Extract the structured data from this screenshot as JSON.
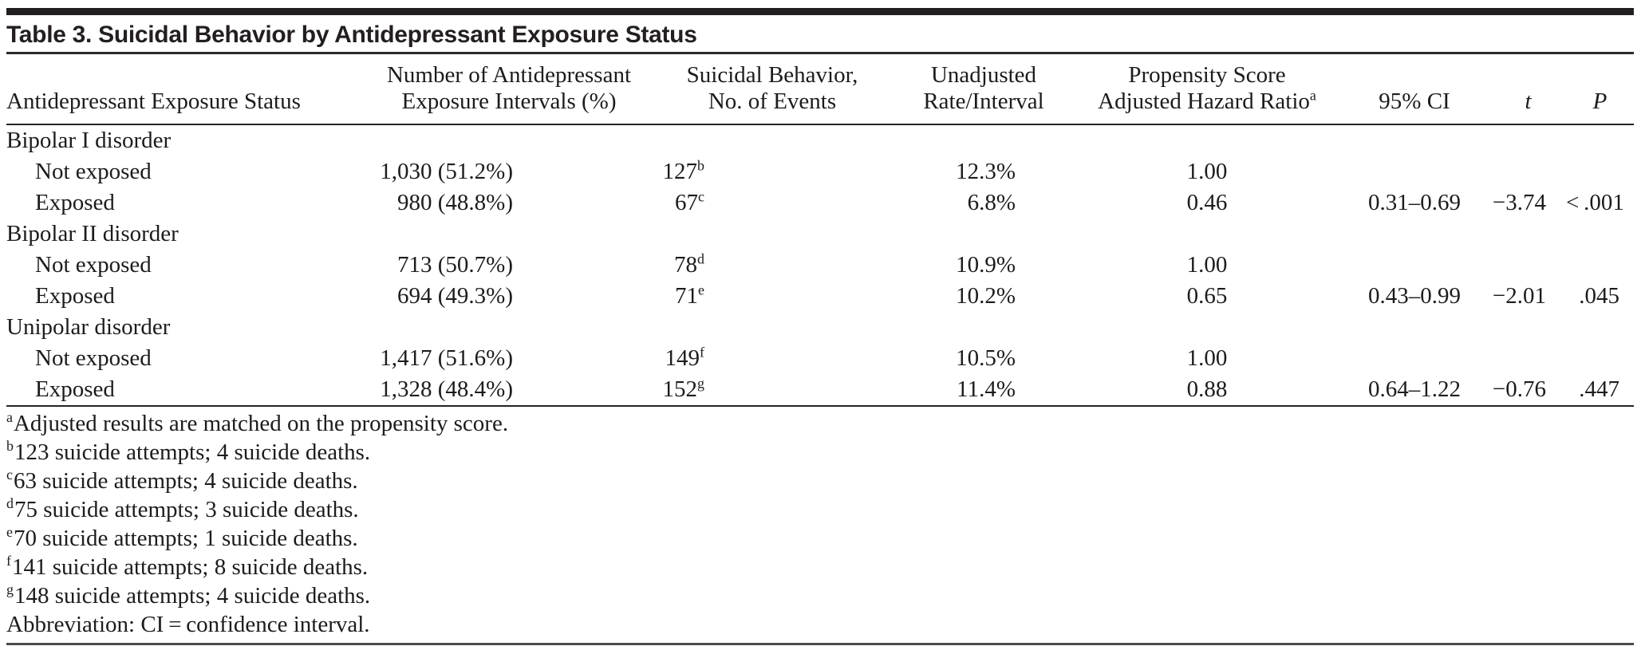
{
  "table": {
    "title": "Table 3. Suicidal Behavior by Antidepressant Exposure Status",
    "columns": [
      {
        "id": "status",
        "line1": "",
        "line2": "Antidepressant Exposure Status"
      },
      {
        "id": "intervals",
        "line1": "Number of Antidepressant",
        "line2": "Exposure Intervals (%)"
      },
      {
        "id": "events",
        "line1": "Suicidal Behavior,",
        "line2": "No. of Events"
      },
      {
        "id": "rate",
        "line1": "Unadjusted",
        "line2": "Rate/Interval"
      },
      {
        "id": "hr",
        "line1": "Propensity Score",
        "line2": "Adjusted Hazard Ratio",
        "line2_sup": "a"
      },
      {
        "id": "ci",
        "line1": "",
        "line2": "95% CI"
      },
      {
        "id": "t",
        "line1": "",
        "line2": "t",
        "italic": true
      },
      {
        "id": "p",
        "line1": "",
        "line2": "P",
        "italic": true
      }
    ],
    "rows": [
      {
        "type": "group",
        "label": "Bipolar I disorder"
      },
      {
        "type": "data",
        "label": "Not exposed",
        "intervals": "1,030 (51.2%)",
        "events": "127",
        "events_sup": "b",
        "rate": "12.3%",
        "hr": "1.00",
        "ci": "",
        "t": "",
        "p": ""
      },
      {
        "type": "data",
        "label": "Exposed",
        "intervals": "980 (48.8%)",
        "events": "67",
        "events_sup": "c",
        "rate": "6.8%",
        "hr": "0.46",
        "ci": "0.31–0.69",
        "t": "−3.74",
        "p": "< .001"
      },
      {
        "type": "group",
        "label": "Bipolar II disorder"
      },
      {
        "type": "data",
        "label": "Not exposed",
        "intervals": "713 (50.7%)",
        "events": "78",
        "events_sup": "d",
        "rate": "10.9%",
        "hr": "1.00",
        "ci": "",
        "t": "",
        "p": ""
      },
      {
        "type": "data",
        "label": "Exposed",
        "intervals": "694 (49.3%)",
        "events": "71",
        "events_sup": "e",
        "rate": "10.2%",
        "hr": "0.65",
        "ci": "0.43–0.99",
        "t": "−2.01",
        "p": ".045"
      },
      {
        "type": "group",
        "label": "Unipolar disorder"
      },
      {
        "type": "data",
        "label": "Not exposed",
        "intervals": "1,417 (51.6%)",
        "events": "149",
        "events_sup": "f",
        "rate": "10.5%",
        "hr": "1.00",
        "ci": "",
        "t": "",
        "p": ""
      },
      {
        "type": "data",
        "label": "Exposed",
        "intervals": "1,328 (48.4%)",
        "events": "152",
        "events_sup": "g",
        "rate": "11.4%",
        "hr": "0.88",
        "ci": "0.64–1.22",
        "t": "−0.76",
        "p": ".447"
      }
    ],
    "footnotes": [
      {
        "sup": "a",
        "text": "Adjusted results are matched on the propensity score."
      },
      {
        "sup": "b",
        "text": "123 suicide attempts; 4 suicide deaths."
      },
      {
        "sup": "c",
        "text": "63 suicide attempts; 4 suicide deaths."
      },
      {
        "sup": "d",
        "text": "75 suicide attempts; 3 suicide deaths."
      },
      {
        "sup": "e",
        "text": "70 suicide attempts; 1 suicide deaths."
      },
      {
        "sup": "f",
        "text": "141 suicide attempts; 8 suicide deaths."
      },
      {
        "sup": "g",
        "text": "148 suicide attempts; 4 suicide deaths."
      },
      {
        "sup": "",
        "text": "Abbreviation: CI = confidence interval."
      }
    ],
    "colors": {
      "rule_dark": "#242424",
      "top_bar": "#231f20",
      "text": "#1c1c1c"
    }
  }
}
